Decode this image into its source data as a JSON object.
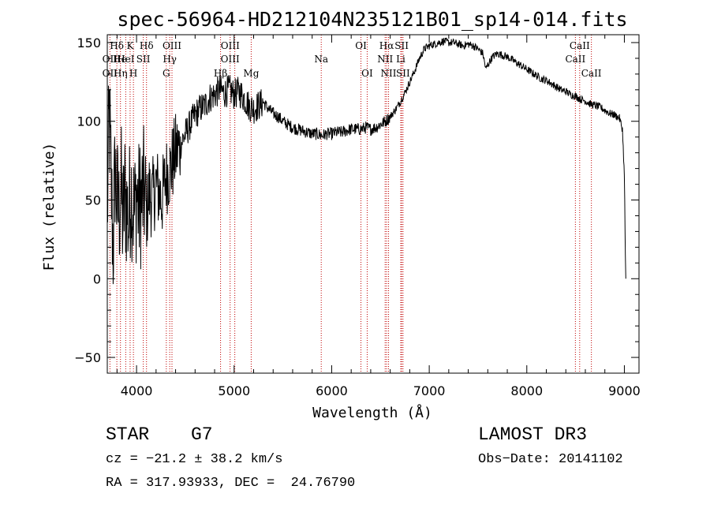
{
  "chart_data": {
    "type": "line",
    "title": "spec-56964-HD212104N235121B01_sp14-014.fits",
    "xlabel": "Wavelength (Å)",
    "ylabel": "Flux (relative)",
    "xlim": [
      3700,
      9150
    ],
    "ylim": [
      -60,
      155
    ],
    "x_ticks": [
      4000,
      5000,
      6000,
      7000,
      8000,
      9000
    ],
    "y_ticks": [
      -50,
      0,
      50,
      100,
      150
    ],
    "series": [
      {
        "name": "flux",
        "anchors": [
          [
            3700,
            40
          ],
          [
            3720,
            105
          ],
          [
            3740,
            60
          ],
          [
            3760,
            20
          ],
          [
            3780,
            70
          ],
          [
            3800,
            50
          ],
          [
            3820,
            40
          ],
          [
            3840,
            60
          ],
          [
            3860,
            35
          ],
          [
            3880,
            55
          ],
          [
            3900,
            45
          ],
          [
            3920,
            35
          ],
          [
            3940,
            60
          ],
          [
            3960,
            50
          ],
          [
            3980,
            40
          ],
          [
            4000,
            55
          ],
          [
            4020,
            45
          ],
          [
            4050,
            50
          ],
          [
            4080,
            55
          ],
          [
            4100,
            40
          ],
          [
            4130,
            55
          ],
          [
            4160,
            50
          ],
          [
            4200,
            60
          ],
          [
            4230,
            55
          ],
          [
            4260,
            50
          ],
          [
            4300,
            65
          ],
          [
            4350,
            70
          ],
          [
            4400,
            80
          ],
          [
            4450,
            85
          ],
          [
            4500,
            92
          ],
          [
            4550,
            98
          ],
          [
            4600,
            104
          ],
          [
            4650,
            108
          ],
          [
            4700,
            110
          ],
          [
            4750,
            115
          ],
          [
            4800,
            117
          ],
          [
            4850,
            120
          ],
          [
            4900,
            118
          ],
          [
            4950,
            120
          ],
          [
            5000,
            117
          ],
          [
            5050,
            119
          ],
          [
            5100,
            115
          ],
          [
            5150,
            110
          ],
          [
            5200,
            108
          ],
          [
            5250,
            110
          ],
          [
            5300,
            112
          ],
          [
            5350,
            108
          ],
          [
            5400,
            105
          ],
          [
            5450,
            103
          ],
          [
            5500,
            100
          ],
          [
            5550,
            98
          ],
          [
            5600,
            96
          ],
          [
            5650,
            95
          ],
          [
            5700,
            94
          ],
          [
            5750,
            93
          ],
          [
            5800,
            92
          ],
          [
            5850,
            92
          ],
          [
            5900,
            91
          ],
          [
            5950,
            92
          ],
          [
            6000,
            92
          ],
          [
            6050,
            93
          ],
          [
            6100,
            93
          ],
          [
            6150,
            94
          ],
          [
            6200,
            95
          ],
          [
            6250,
            95
          ],
          [
            6300,
            95
          ],
          [
            6350,
            96
          ],
          [
            6400,
            95
          ],
          [
            6450,
            96
          ],
          [
            6500,
            98
          ],
          [
            6550,
            100
          ],
          [
            6600,
            103
          ],
          [
            6650,
            107
          ],
          [
            6700,
            112
          ],
          [
            6750,
            118
          ],
          [
            6800,
            125
          ],
          [
            6850,
            132
          ],
          [
            6900,
            140
          ],
          [
            6950,
            146
          ],
          [
            7000,
            148
          ],
          [
            7050,
            149
          ],
          [
            7100,
            150
          ],
          [
            7150,
            151
          ],
          [
            7200,
            150
          ],
          [
            7250,
            150
          ],
          [
            7300,
            149
          ],
          [
            7350,
            148
          ],
          [
            7400,
            149
          ],
          [
            7450,
            148
          ],
          [
            7500,
            146
          ],
          [
            7550,
            143
          ],
          [
            7580,
            133
          ],
          [
            7600,
            136
          ],
          [
            7650,
            141
          ],
          [
            7700,
            143
          ],
          [
            7750,
            142
          ],
          [
            7800,
            141
          ],
          [
            7850,
            139
          ],
          [
            7900,
            137
          ],
          [
            7950,
            135
          ],
          [
            8000,
            133
          ],
          [
            8050,
            131
          ],
          [
            8100,
            129
          ],
          [
            8150,
            127
          ],
          [
            8200,
            126
          ],
          [
            8250,
            124
          ],
          [
            8300,
            122
          ],
          [
            8350,
            120
          ],
          [
            8400,
            119
          ],
          [
            8450,
            117
          ],
          [
            8500,
            116
          ],
          [
            8550,
            114
          ],
          [
            8600,
            113
          ],
          [
            8650,
            111
          ],
          [
            8700,
            110
          ],
          [
            8750,
            109
          ],
          [
            8800,
            107
          ],
          [
            8850,
            105
          ],
          [
            8900,
            104
          ],
          [
            8950,
            102
          ],
          [
            8980,
            95
          ],
          [
            9000,
            65
          ],
          [
            9010,
            15
          ],
          [
            9015,
            0
          ]
        ]
      }
    ],
    "line_labels": [
      {
        "text": "Hδ",
        "row": 0,
        "wl": 3798
      },
      {
        "text": "K",
        "row": 0,
        "wl": 3934
      },
      {
        "text": "Hδ",
        "row": 0,
        "wl": 4102
      },
      {
        "text": "OIII",
        "row": 0,
        "wl": 4363
      },
      {
        "text": "OIII",
        "row": 0,
        "wl": 4960
      },
      {
        "text": "OI",
        "row": 0,
        "wl": 6300
      },
      {
        "text": "Hα",
        "row": 0,
        "wl": 6563
      },
      {
        "text": "SII",
        "row": 0,
        "wl": 6717
      },
      {
        "text": "CaII",
        "row": 0,
        "wl": 8542
      },
      {
        "text": "OII",
        "row": 1,
        "wl": 3727
      },
      {
        "text": "He",
        "row": 1,
        "wl": 3830
      },
      {
        "text": "HeI",
        "row": 1,
        "wl": 3889
      },
      {
        "text": "SII",
        "row": 1,
        "wl": 4069
      },
      {
        "text": "Hγ",
        "row": 1,
        "wl": 4340
      },
      {
        "text": "OIII",
        "row": 1,
        "wl": 4959
      },
      {
        "text": "Na",
        "row": 1,
        "wl": 5893
      },
      {
        "text": "NII",
        "row": 1,
        "wl": 6548
      },
      {
        "text": "Li",
        "row": 1,
        "wl": 6708
      },
      {
        "text": "CaII",
        "row": 1,
        "wl": 8498
      },
      {
        "text": "OII",
        "row": 2,
        "wl": 3727
      },
      {
        "text": "Hη",
        "row": 2,
        "wl": 3835
      },
      {
        "text": "H",
        "row": 2,
        "wl": 3968
      },
      {
        "text": "G",
        "row": 2,
        "wl": 4305
      },
      {
        "text": "Hβ",
        "row": 2,
        "wl": 4861
      },
      {
        "text": "Mg",
        "row": 2,
        "wl": 5175
      },
      {
        "text": "OI",
        "row": 2,
        "wl": 6364
      },
      {
        "text": "NII",
        "row": 2,
        "wl": 6583
      },
      {
        "text": "SII",
        "row": 2,
        "wl": 6731
      },
      {
        "text": "CaII",
        "row": 2,
        "wl": 8662
      }
    ],
    "line_marker_wavelengths": [
      3727,
      3798,
      3835,
      3889,
      3934,
      3968,
      4069,
      4102,
      4305,
      4340,
      4363,
      4861,
      4959,
      5007,
      5175,
      5893,
      6300,
      6364,
      6548,
      6563,
      6583,
      6708,
      6717,
      6731,
      8498,
      8542,
      8662
    ]
  },
  "info": {
    "object_class": "STAR",
    "subclass": "G7",
    "survey": "LAMOST DR3",
    "cz": "cz = −21.2 ± 38.2 km/s",
    "obs_date": "Obs−Date: 20141102",
    "coords": "RA = 317.93933, DEC =  24.76790"
  }
}
